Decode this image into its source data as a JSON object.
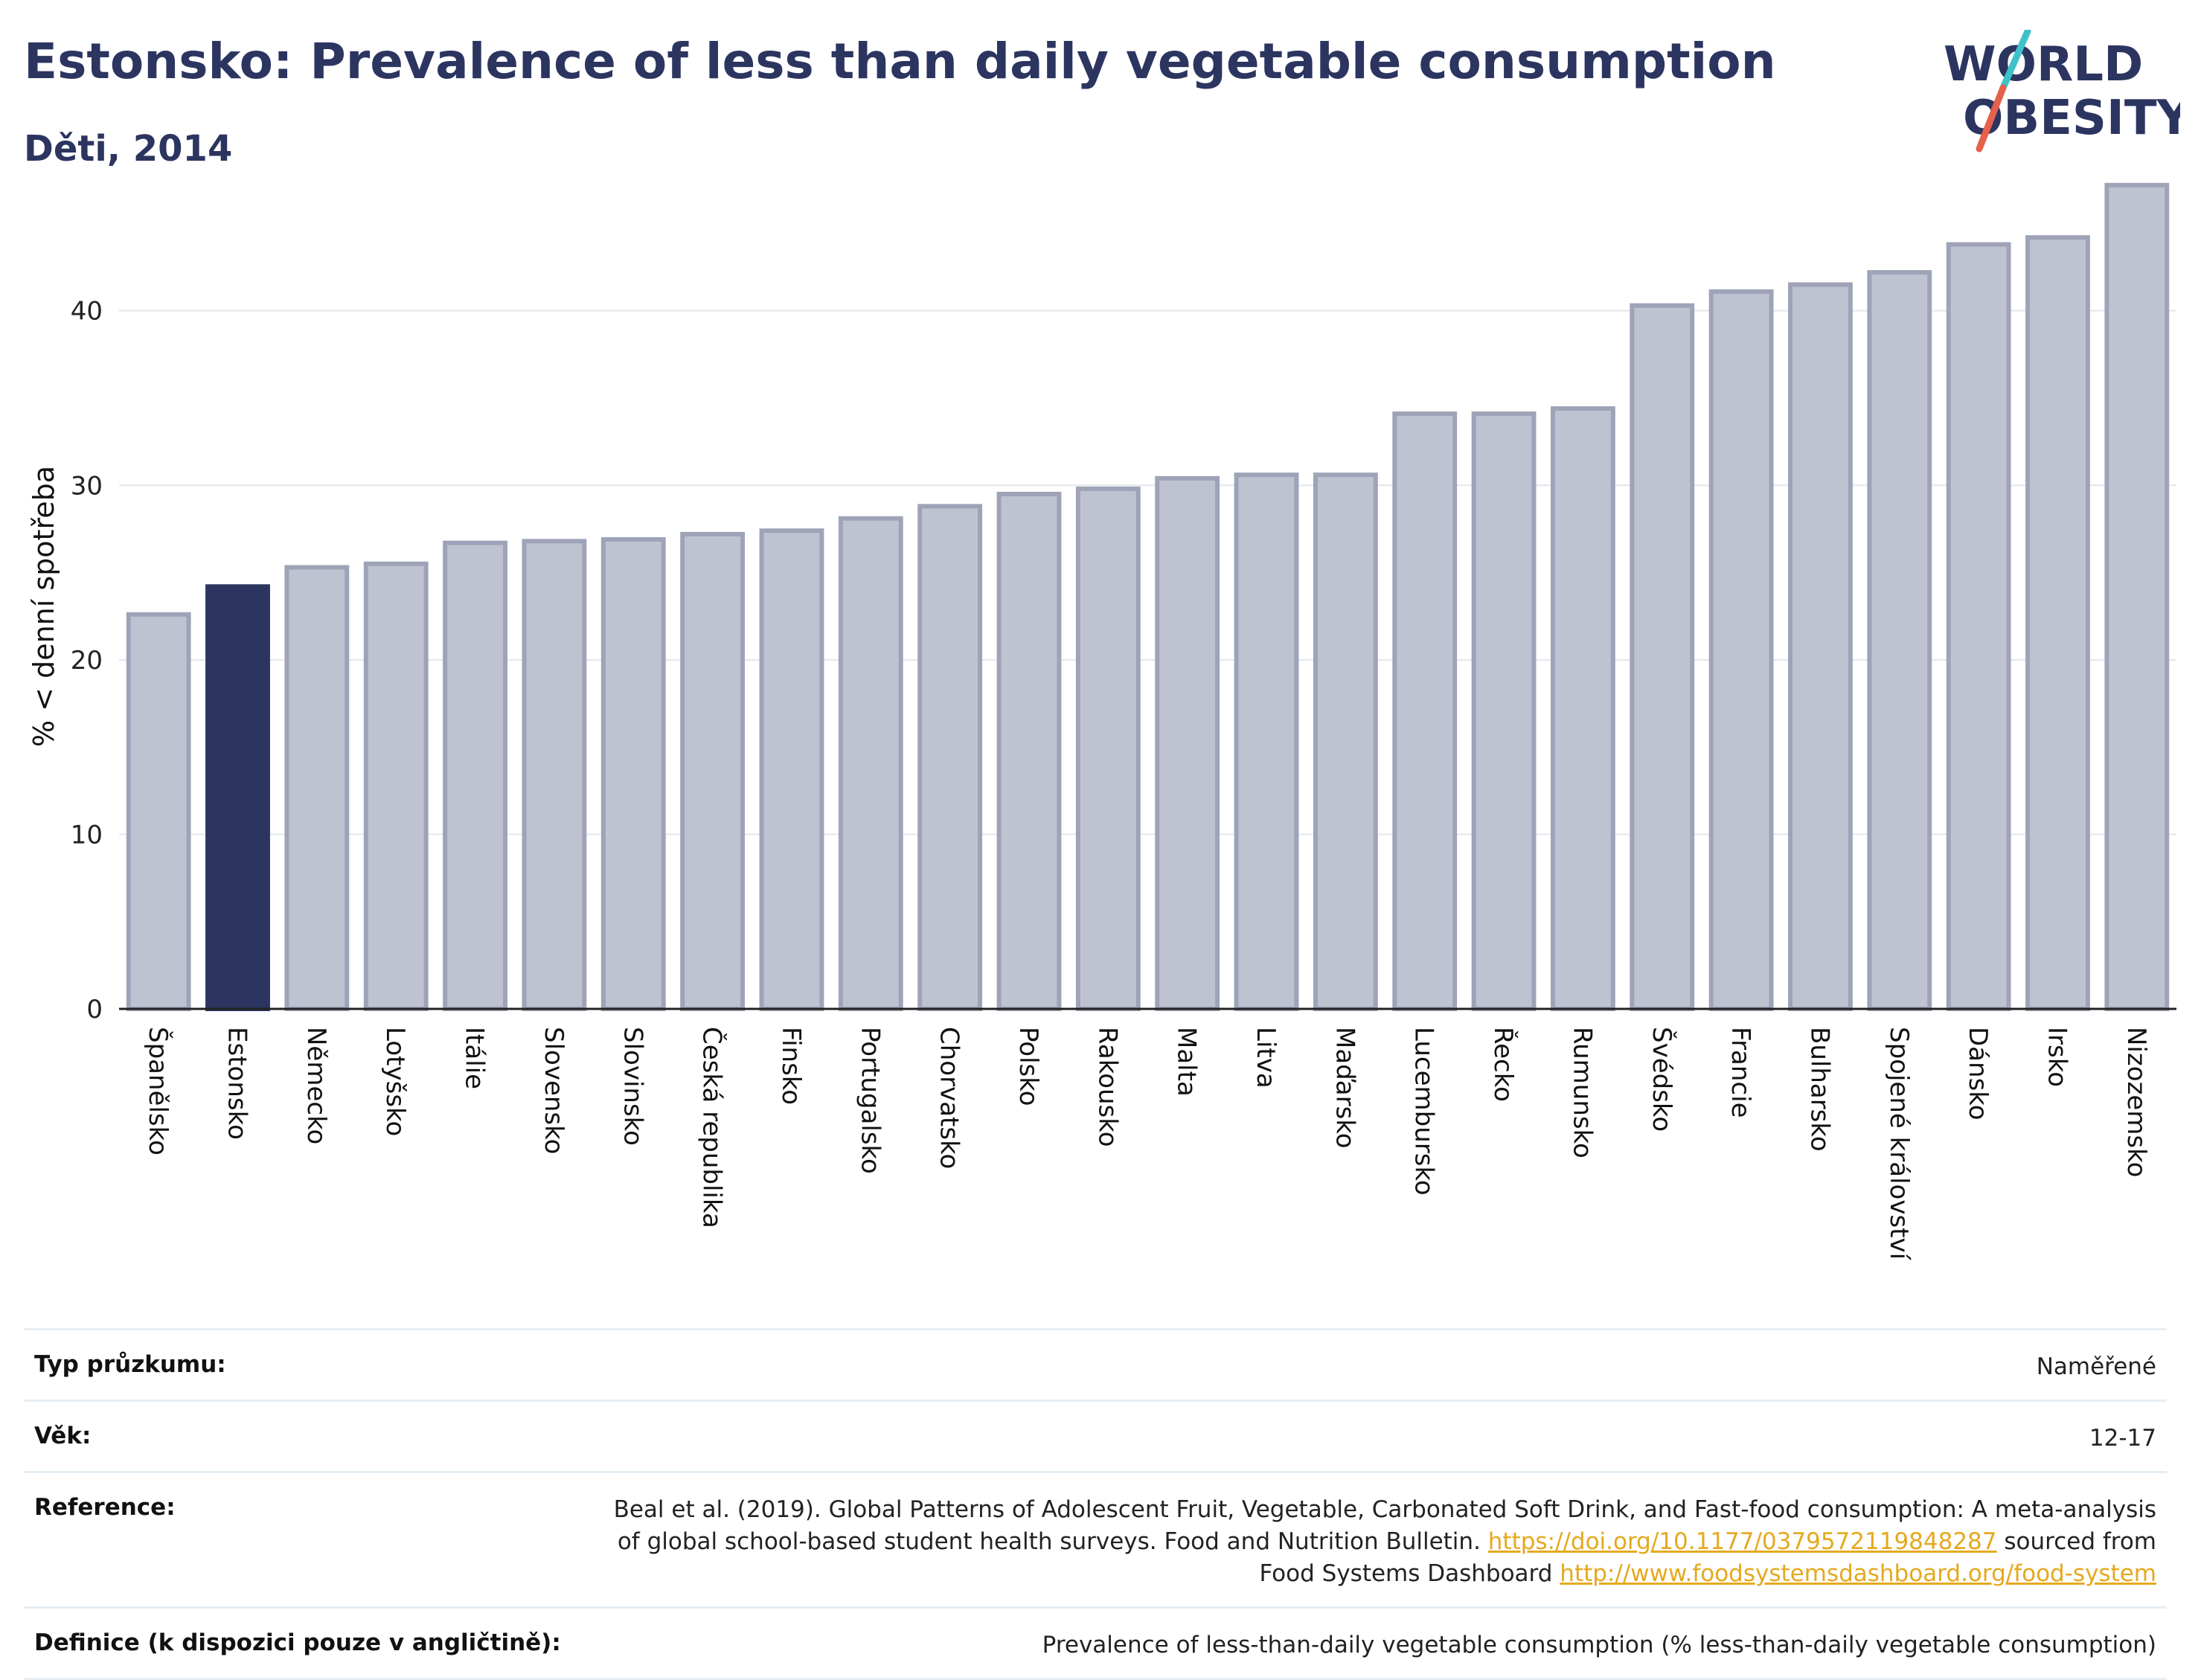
{
  "header": {
    "title": "Estonsko: Prevalence of less than daily vegetable consumption",
    "subtitle": "Děti, 2014"
  },
  "logo": {
    "line1": "WORLD",
    "line2": "OBESITY",
    "colors": {
      "text": "#2c3560",
      "slash_top": "#3ec1c9",
      "slash_bottom": "#e5604d"
    }
  },
  "colors": {
    "bar_default": "#bfc3d1",
    "bar_default_border": "#9ea3b8",
    "bar_highlight": "#2c3560",
    "grid": "#e4e6ec",
    "axis": "#222222"
  },
  "chart_data": {
    "type": "bar",
    "ylabel": "% < denní spotřeba",
    "xlabel": "",
    "ylim": [
      0,
      48
    ],
    "yticks": [
      0,
      10,
      20,
      30,
      40
    ],
    "grid": true,
    "highlight": "Estonsko",
    "categories": [
      "Španělsko",
      "Estonsko",
      "Německo",
      "Lotyšsko",
      "Itálie",
      "Slovensko",
      "Slovinsko",
      "Česká republika",
      "Finsko",
      "Portugalsko",
      "Chorvatsko",
      "Polsko",
      "Rakousko",
      "Malta",
      "Litva",
      "Maďarsko",
      "Lucembursko",
      "Řecko",
      "Rumunsko",
      "Švédsko",
      "Francie",
      "Bulharsko",
      "Spojené království",
      "Dánsko",
      "Irsko",
      "Nizozemsko"
    ],
    "values": [
      22.6,
      24.2,
      25.3,
      25.5,
      26.7,
      26.8,
      26.9,
      27.2,
      27.4,
      28.1,
      28.8,
      29.5,
      29.8,
      30.4,
      30.6,
      30.6,
      34.1,
      34.1,
      34.4,
      40.3,
      41.1,
      41.5,
      42.2,
      43.8,
      44.2,
      47.2
    ]
  },
  "meta": [
    {
      "key": "Typ průzkumu:",
      "value": "Naměřené"
    },
    {
      "key": "Věk:",
      "value": "12-17"
    },
    {
      "key": "Reference:",
      "value_line1": "Beal et al. (2019). Global Patterns of Adolescent Fruit, Vegetable, Carbonated Soft Drink, and Fast-food consumption: A meta-analysis",
      "value_line2": "of global school-based student health surveys. Food and Nutrition Bulletin.",
      "link1": "https://doi.org/10.1177/0379572119848287",
      "value_line2b": "sourced from",
      "value_line3": "Food Systems Dashboard",
      "link2": "http://www.foodsystemsdashboard.org/food-system"
    },
    {
      "key": "Definice (k dispozici pouze v angličtině):",
      "value": "Prevalence of less-than-daily vegetable consumption (% less-than-daily vegetable consumption)"
    }
  ]
}
